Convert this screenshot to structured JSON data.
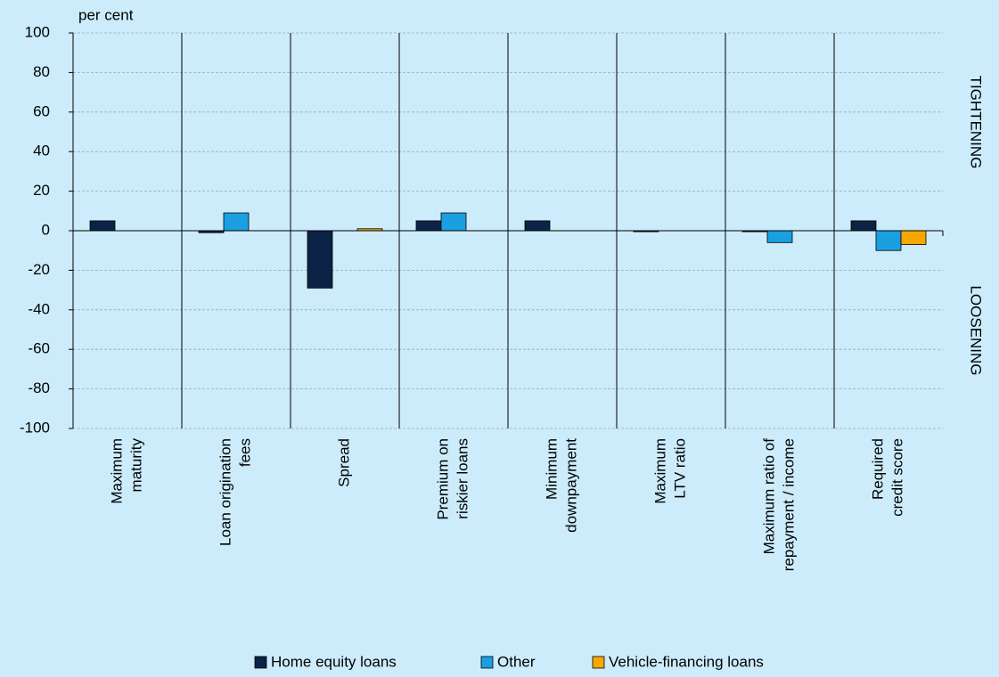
{
  "chart_data": {
    "type": "bar",
    "y_axis_label": "per cent",
    "annotations": [
      "TIGHTENING",
      "LOOSENING"
    ],
    "categories": [
      [
        "Maximum",
        "maturity"
      ],
      [
        "Loan origination",
        "fees"
      ],
      [
        "Spread"
      ],
      [
        "Premium on",
        "riskier loans"
      ],
      [
        "Minimum",
        "downpayment"
      ],
      [
        "Maximum",
        "LTV ratio"
      ],
      [
        "Maximum ratio of",
        "repayment / income"
      ],
      [
        "Required",
        "credit score"
      ]
    ],
    "series": [
      {
        "name": "Home equity loans",
        "color": "#0b2345",
        "values": [
          5,
          -1,
          -29,
          5,
          5,
          -0.5,
          -0.5,
          5
        ]
      },
      {
        "name": "Other",
        "color": "#1aa0e0",
        "values": [
          0,
          9,
          0,
          9,
          0,
          0,
          -6,
          -10
        ]
      },
      {
        "name": "Vehicle-financing loans",
        "color": "#f5a800",
        "values": [
          0,
          0,
          1,
          0,
          0,
          0,
          0,
          -7
        ]
      }
    ],
    "ylim": [
      -100,
      100
    ],
    "yticks": [
      -100,
      -80,
      -60,
      -40,
      -20,
      0,
      20,
      40,
      60,
      80,
      100
    ],
    "grid": true
  }
}
